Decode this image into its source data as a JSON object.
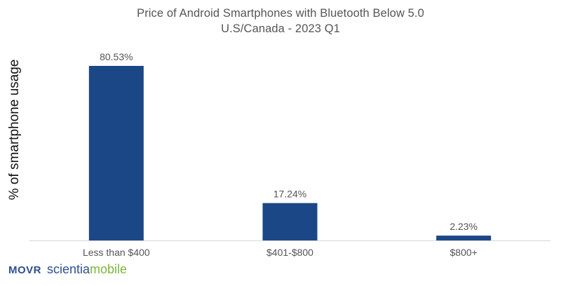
{
  "chart_data": {
    "type": "bar",
    "title": "Price of Android Smartphones with Bluetooth Below 5.0",
    "subtitle": "U.S/Canada - 2023 Q1",
    "xlabel": "",
    "ylabel": "% of smartphone usage",
    "categories": [
      "Less than $400",
      "$401-$800",
      "$800+"
    ],
    "values": [
      80.53,
      17.24,
      2.23
    ],
    "data_labels": [
      "80.53%",
      "17.24%",
      "2.23%"
    ],
    "ylim": [
      0,
      100
    ],
    "grid": false,
    "legend": "none",
    "colors": {
      "bar": "#1c4787",
      "axis": "#d6d6d6",
      "text": "#555555"
    }
  },
  "logo": {
    "brand": "MOVR",
    "company_part1": "scientia",
    "company_part2": "mobile"
  }
}
